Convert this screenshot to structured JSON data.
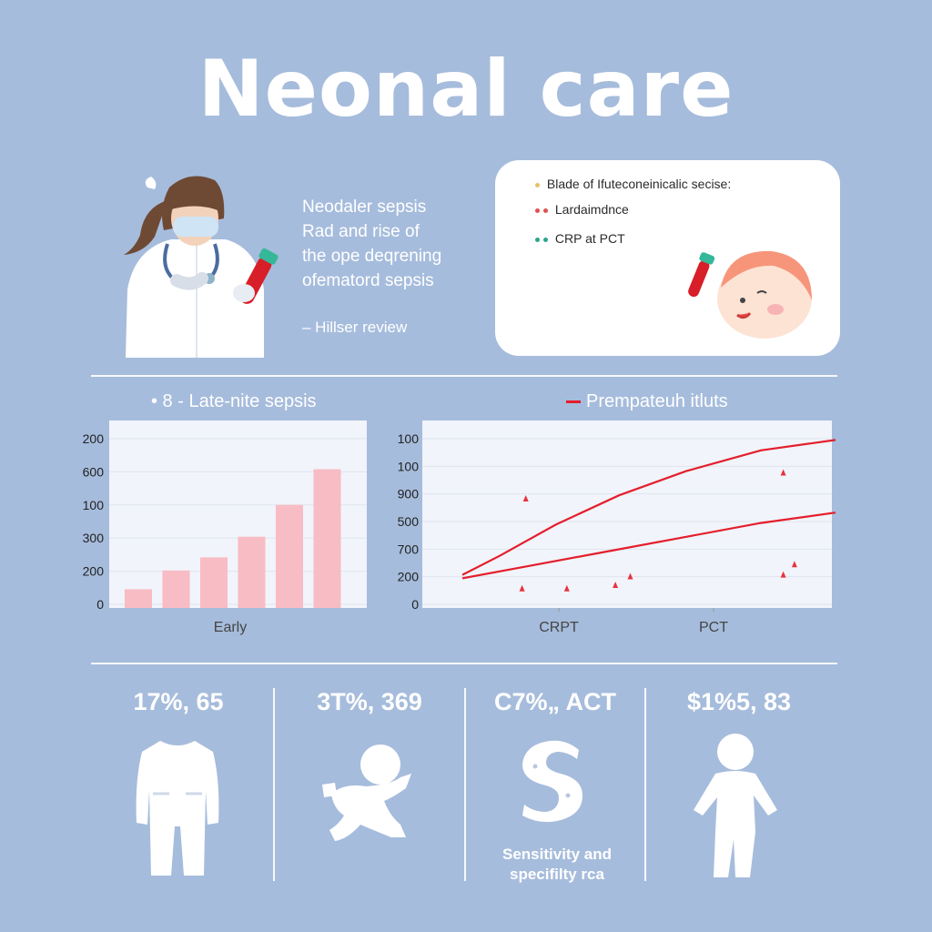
{
  "page": {
    "title": "Neonal care",
    "intro": {
      "lines": [
        "Neodaler sepsis",
        "Rad and rise of",
        "the ope deqrening",
        "ofematord sepsis"
      ],
      "review": "– Hillser review"
    },
    "info_card": {
      "items": [
        {
          "text": "Blade of Ifuteconeinicalic secise:",
          "dots": [
            "#e8c06a"
          ]
        },
        {
          "text": "Lardaimdnce",
          "dots": [
            "#e05050",
            "#e05050"
          ]
        },
        {
          "text": "CRP at PCT",
          "dots": [
            "#2aa58c",
            "#2aa58c"
          ]
        }
      ]
    },
    "colors": {
      "background": "#a6bcdc",
      "bar": "#f8bcc4",
      "line": "#e41e2c",
      "marker": "#e8323e",
      "text": "#ffffff"
    },
    "icons": [
      "doctor-with-test-tube-icon",
      "baby-face-icon",
      "onesie-icon",
      "crawling-baby-icon",
      "s-curve-icon",
      "toddler-icon"
    ]
  },
  "chart_data": [
    {
      "type": "bar",
      "title": "• 8 - Late-nite sepsis",
      "xlabel": "Early",
      "ylabel": "",
      "tick_labels": [
        "200",
        "600",
        "100",
        "300",
        "200",
        "0"
      ],
      "values": [
        0.1,
        0.2,
        0.27,
        0.38,
        0.55,
        0.74
      ],
      "ylim": [
        0,
        1
      ],
      "grid": true
    },
    {
      "type": "line",
      "title": "Prempateuh itluts",
      "legend_position": "top",
      "tick_labels": [
        "100",
        "100",
        "900",
        "500",
        "700",
        "200",
        "0"
      ],
      "x_tick_labels": [
        "CRPT",
        "PCT"
      ],
      "ylim": [
        0,
        1
      ],
      "xlim": [
        0,
        1
      ],
      "series": [
        {
          "values": [
            [
              0,
              0.16
            ],
            [
              0.1,
              0.27
            ],
            [
              0.25,
              0.45
            ],
            [
              0.42,
              0.62
            ],
            [
              0.6,
              0.76
            ],
            [
              0.8,
              0.88
            ],
            [
              1,
              0.94
            ]
          ]
        },
        {
          "values": [
            [
              0,
              0.14
            ],
            [
              0.2,
              0.22
            ],
            [
              0.4,
              0.3
            ],
            [
              0.6,
              0.38
            ],
            [
              0.8,
              0.46
            ],
            [
              1,
              0.52
            ]
          ]
        }
      ],
      "points": [
        [
          0.17,
          0.6
        ],
        [
          0.16,
          0.08
        ],
        [
          0.28,
          0.08
        ],
        [
          0.41,
          0.1
        ],
        [
          0.45,
          0.15
        ],
        [
          0.86,
          0.75
        ],
        [
          0.86,
          0.16
        ],
        [
          0.89,
          0.22
        ]
      ],
      "grid": true
    }
  ],
  "stats": [
    {
      "value": "17%, 65",
      "icon": "onesie-icon"
    },
    {
      "value": "3T%, 369",
      "icon": "crawling-baby-icon"
    },
    {
      "value": "C7%„ ACT",
      "icon": "s-curve-icon",
      "caption": [
        "Sensitivity and",
        "specifilty rca"
      ]
    },
    {
      "value": "$1%5, 83",
      "icon": "toddler-icon"
    }
  ]
}
